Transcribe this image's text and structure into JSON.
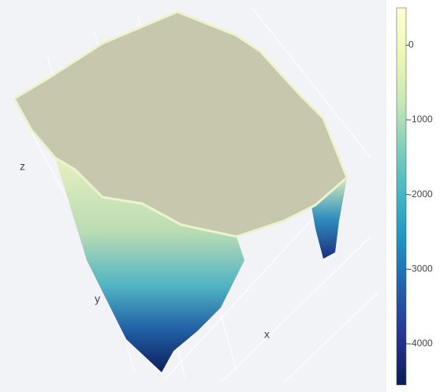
{
  "chart_data": {
    "type": "surface",
    "xlabel": "x",
    "ylabel": "y",
    "zlabel": "z",
    "colorscale": [
      "#081d58",
      "#253494",
      "#225ea8",
      "#1d91c0",
      "#41b6c4",
      "#7fcdbb",
      "#c7e9b4",
      "#edf8b1",
      "#ffffd9"
    ],
    "clim": [
      -4550,
      500
    ],
    "colorbar_ticks": [
      0,
      -1000,
      -2000,
      -3000,
      -4000
    ]
  }
}
